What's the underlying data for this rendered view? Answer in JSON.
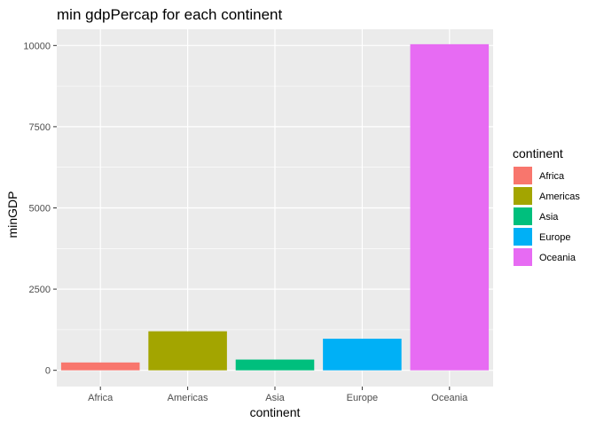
{
  "chart_data": {
    "type": "bar",
    "title": "min gdpPercap for each continent",
    "xlabel": "continent",
    "ylabel": "minGDP",
    "categories": [
      "Africa",
      "Americas",
      "Asia",
      "Europe",
      "Oceania"
    ],
    "values": [
      241.17,
      1201.64,
      331.0,
      973.53,
      10039.6
    ],
    "colors": [
      "#F8766D",
      "#A3A500",
      "#00BF7D",
      "#00B0F6",
      "#E76BF3"
    ],
    "ylim": [
      -500,
      10500
    ],
    "yticks": [
      0,
      2500,
      5000,
      7500,
      10000
    ],
    "grid": true,
    "panel_background": "#EBEBEB",
    "legend": {
      "title": "continent",
      "placement": "right",
      "entries": [
        "Africa",
        "Americas",
        "Asia",
        "Europe",
        "Oceania"
      ]
    }
  }
}
